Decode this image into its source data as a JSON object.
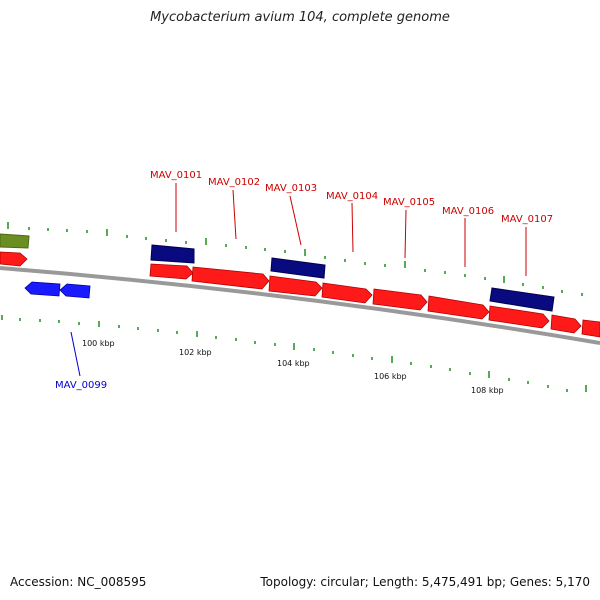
{
  "title": "Mycobacterium avium 104, complete genome",
  "footer": {
    "accession": "Accession: NC_008595",
    "summary": "Topology: circular; Length: 5,475,491 bp; Genes: 5,170"
  },
  "colors": {
    "forward_cds": "#ff1a1a",
    "reverse_cds": "#1a1aff",
    "forward_label": "#cc0000",
    "reverse_label": "#0000cc",
    "hits": "#0a0a80",
    "rna": "#6b8e23",
    "backbone": "#888888",
    "ticks": "#1f8f1f"
  },
  "scale_labels": [
    "100 kbp",
    "102 kbp",
    "104 kbp",
    "106 kbp",
    "108 kbp"
  ],
  "gene_labels": [
    {
      "text": "MAV_0101",
      "strand": "forward"
    },
    {
      "text": "MAV_0102",
      "strand": "forward"
    },
    {
      "text": "MAV_0103",
      "strand": "forward"
    },
    {
      "text": "MAV_0104",
      "strand": "forward"
    },
    {
      "text": "MAV_0105",
      "strand": "forward"
    },
    {
      "text": "MAV_0106",
      "strand": "forward"
    },
    {
      "text": "MAV_0107",
      "strand": "forward"
    },
    {
      "text": "MAV_0099",
      "strand": "reverse"
    }
  ]
}
